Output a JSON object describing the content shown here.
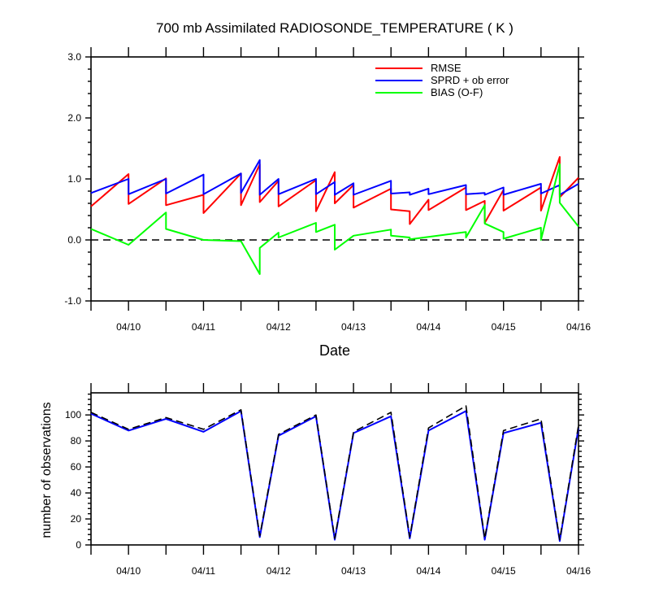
{
  "chart_data": [
    {
      "type": "line",
      "title": "700 mb Assimilated RADIOSONDE_TEMPERATURE ( K )",
      "xlabel": "Date",
      "ylabel": "",
      "ylim": [
        -1.0,
        3.0
      ],
      "xlim": [
        "04/09 12:00",
        "04/16 00:00"
      ],
      "yticks": [
        "-1.0",
        "0.0",
        "1.0",
        "2.0",
        "3.0"
      ],
      "xticks": [
        "04/10",
        "04/11",
        "04/12",
        "04/13",
        "04/14",
        "04/15",
        "04/16"
      ],
      "legend_placement": "top-right",
      "reference_line": {
        "y": 0.0,
        "style": "dashed",
        "color": "#000000"
      },
      "series": [
        {
          "name": "RMSE",
          "color": "#ff0000",
          "points": [
            [
              "04/09 12:00",
              0.55
            ],
            [
              "04/10 00:00",
              1.08
            ],
            [
              "04/10 00:00",
              0.59
            ],
            [
              "04/10 12:00",
              1.01
            ],
            [
              "04/10 12:00",
              0.57
            ],
            [
              "04/11 00:00",
              0.74
            ],
            [
              "04/11 00:00",
              0.44
            ],
            [
              "04/11 12:00",
              1.09
            ],
            [
              "04/11 12:00",
              0.57
            ],
            [
              "04/11 18:00",
              1.24
            ],
            [
              "04/11 18:00",
              0.62
            ],
            [
              "04/12 00:00",
              0.97
            ],
            [
              "04/12 00:00",
              0.55
            ],
            [
              "04/12 12:00",
              0.98
            ],
            [
              "04/12 12:00",
              0.47
            ],
            [
              "04/12 18:00",
              1.11
            ],
            [
              "04/12 18:00",
              0.6
            ],
            [
              "04/13 00:00",
              0.9
            ],
            [
              "04/13 00:00",
              0.53
            ],
            [
              "04/13 12:00",
              0.84
            ],
            [
              "04/13 12:00",
              0.5
            ],
            [
              "04/13 18:00",
              0.47
            ],
            [
              "04/13 18:00",
              0.26
            ],
            [
              "04/14 00:00",
              0.66
            ],
            [
              "04/14 00:00",
              0.49
            ],
            [
              "04/14 12:00",
              0.86
            ],
            [
              "04/14 12:00",
              0.49
            ],
            [
              "04/14 18:00",
              0.64
            ],
            [
              "04/14 18:00",
              0.28
            ],
            [
              "04/15 00:00",
              0.82
            ],
            [
              "04/15 00:00",
              0.48
            ],
            [
              "04/15 12:00",
              0.86
            ],
            [
              "04/15 12:00",
              0.48
            ],
            [
              "04/15 18:00",
              1.36
            ],
            [
              "04/15 18:00",
              0.7
            ],
            [
              "04/16 00:00",
              1.02
            ]
          ]
        },
        {
          "name": "SPRD + ob error",
          "color": "#0000ff",
          "points": [
            [
              "04/09 12:00",
              0.77
            ],
            [
              "04/10 00:00",
              1.0
            ],
            [
              "04/10 00:00",
              0.75
            ],
            [
              "04/10 12:00",
              1.0
            ],
            [
              "04/10 12:00",
              0.76
            ],
            [
              "04/11 00:00",
              1.07
            ],
            [
              "04/11 00:00",
              0.75
            ],
            [
              "04/11 12:00",
              1.09
            ],
            [
              "04/11 12:00",
              0.77
            ],
            [
              "04/11 18:00",
              1.31
            ],
            [
              "04/11 18:00",
              0.74
            ],
            [
              "04/12 00:00",
              1.0
            ],
            [
              "04/12 00:00",
              0.75
            ],
            [
              "04/12 12:00",
              1.0
            ],
            [
              "04/12 12:00",
              0.75
            ],
            [
              "04/12 18:00",
              0.95
            ],
            [
              "04/12 18:00",
              0.74
            ],
            [
              "04/13 00:00",
              0.93
            ],
            [
              "04/13 00:00",
              0.74
            ],
            [
              "04/13 12:00",
              0.97
            ],
            [
              "04/13 12:00",
              0.76
            ],
            [
              "04/13 18:00",
              0.78
            ],
            [
              "04/13 18:00",
              0.74
            ],
            [
              "04/14 00:00",
              0.84
            ],
            [
              "04/14 00:00",
              0.75
            ],
            [
              "04/14 12:00",
              0.9
            ],
            [
              "04/14 12:00",
              0.75
            ],
            [
              "04/14 18:00",
              0.77
            ],
            [
              "04/14 18:00",
              0.74
            ],
            [
              "04/15 00:00",
              0.86
            ],
            [
              "04/15 00:00",
              0.74
            ],
            [
              "04/15 12:00",
              0.92
            ],
            [
              "04/15 12:00",
              0.76
            ],
            [
              "04/15 18:00",
              0.9
            ],
            [
              "04/15 18:00",
              0.74
            ],
            [
              "04/16 00:00",
              0.92
            ]
          ]
        },
        {
          "name": "BIAS (O-F)",
          "color": "#00ff00",
          "points": [
            [
              "04/09 12:00",
              0.18
            ],
            [
              "04/10 00:00",
              -0.08
            ],
            [
              "04/10 12:00",
              0.45
            ],
            [
              "04/10 12:00",
              0.18
            ],
            [
              "04/11 00:00",
              0.0
            ],
            [
              "04/11 12:00",
              -0.02
            ],
            [
              "04/11 18:00",
              -0.56
            ],
            [
              "04/11 18:00",
              -0.13
            ],
            [
              "04/12 00:00",
              0.12
            ],
            [
              "04/12 00:00",
              0.04
            ],
            [
              "04/12 12:00",
              0.28
            ],
            [
              "04/12 12:00",
              0.13
            ],
            [
              "04/12 18:00",
              0.25
            ],
            [
              "04/12 18:00",
              -0.16
            ],
            [
              "04/13 00:00",
              0.07
            ],
            [
              "04/13 12:00",
              0.17
            ],
            [
              "04/13 12:00",
              0.07
            ],
            [
              "04/13 18:00",
              0.04
            ],
            [
              "04/13 18:00",
              0.01
            ],
            [
              "04/14 00:00",
              0.05
            ],
            [
              "04/14 12:00",
              0.13
            ],
            [
              "04/14 12:00",
              0.04
            ],
            [
              "04/14 18:00",
              0.57
            ],
            [
              "04/14 18:00",
              0.27
            ],
            [
              "04/15 00:00",
              0.13
            ],
            [
              "04/15 00:00",
              0.02
            ],
            [
              "04/15 12:00",
              0.2
            ],
            [
              "04/15 12:00",
              0.0
            ],
            [
              "04/15 18:00",
              1.24
            ],
            [
              "04/15 18:00",
              0.61
            ],
            [
              "04/16 00:00",
              0.22
            ]
          ]
        }
      ]
    },
    {
      "type": "line",
      "title": "",
      "xlabel": "",
      "ylabel": "number of observations",
      "ylim": [
        0,
        117
      ],
      "xlim": [
        "04/09 12:00",
        "04/16 00:00"
      ],
      "yticks": [
        "0",
        "20",
        "40",
        "60",
        "80",
        "100"
      ],
      "xticks": [
        "04/10",
        "04/11",
        "04/12",
        "04/13",
        "04/14",
        "04/15",
        "04/16"
      ],
      "series": [
        {
          "color": "#0000ff",
          "style": "solid",
          "points": [
            [
              "04/09 12:00",
              101
            ],
            [
              "04/10 00:00",
              88
            ],
            [
              "04/10 12:00",
              97
            ],
            [
              "04/11 00:00",
              87
            ],
            [
              "04/11 12:00",
              103
            ],
            [
              "04/11 18:00",
              6
            ],
            [
              "04/12 00:00",
              84
            ],
            [
              "04/12 12:00",
              99
            ],
            [
              "04/12 18:00",
              4
            ],
            [
              "04/13 00:00",
              86
            ],
            [
              "04/13 12:00",
              99
            ],
            [
              "04/13 18:00",
              5
            ],
            [
              "04/14 00:00",
              88
            ],
            [
              "04/14 12:00",
              103
            ],
            [
              "04/14 18:00",
              4
            ],
            [
              "04/15 00:00",
              86
            ],
            [
              "04/15 12:00",
              94
            ],
            [
              "04/15 18:00",
              3
            ],
            [
              "04/16 00:00",
              90
            ]
          ]
        },
        {
          "color": "#000000",
          "style": "dashed",
          "points": [
            [
              "04/09 12:00",
              102
            ],
            [
              "04/10 00:00",
              89
            ],
            [
              "04/10 12:00",
              98
            ],
            [
              "04/11 00:00",
              89
            ],
            [
              "04/11 12:00",
              104
            ],
            [
              "04/11 18:00",
              7
            ],
            [
              "04/12 00:00",
              85
            ],
            [
              "04/12 12:00",
              100
            ],
            [
              "04/12 18:00",
              5
            ],
            [
              "04/13 00:00",
              87
            ],
            [
              "04/13 12:00",
              102
            ],
            [
              "04/13 18:00",
              6
            ],
            [
              "04/14 00:00",
              90
            ],
            [
              "04/14 12:00",
              107
            ],
            [
              "04/14 18:00",
              5
            ],
            [
              "04/15 00:00",
              88
            ],
            [
              "04/15 12:00",
              97
            ],
            [
              "04/15 18:00",
              4
            ],
            [
              "04/16 00:00",
              92
            ]
          ]
        }
      ]
    }
  ]
}
